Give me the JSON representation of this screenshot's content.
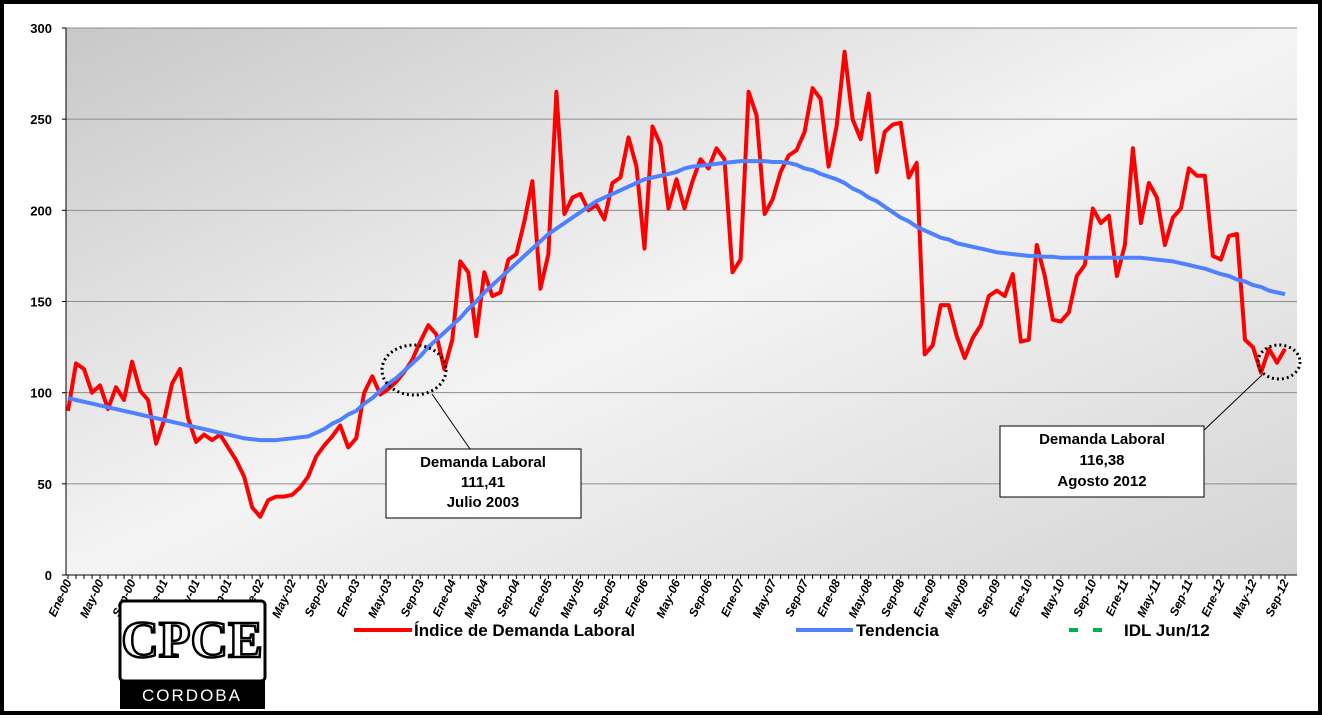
{
  "chart_data": {
    "type": "line",
    "categories": [
      "Ene-00",
      null,
      null,
      null,
      "May-00",
      null,
      null,
      null,
      "Sep-00",
      null,
      null,
      null,
      "Ene-01",
      null,
      null,
      null,
      "May-01",
      null,
      null,
      null,
      "Sep-01",
      null,
      null,
      null,
      "Ene-02",
      null,
      null,
      null,
      "May-02",
      null,
      null,
      null,
      "Sep-02",
      null,
      null,
      null,
      "Ene-03",
      null,
      null,
      null,
      "May-03",
      null,
      null,
      null,
      "Sep-03",
      null,
      null,
      null,
      "Ene-04",
      null,
      null,
      null,
      "May-04",
      null,
      null,
      null,
      "Sep-04",
      null,
      null,
      null,
      "Ene-05",
      null,
      null,
      null,
      "May-05",
      null,
      null,
      null,
      "Sep-05",
      null,
      null,
      null,
      "Ene-06",
      null,
      null,
      null,
      "May-06",
      null,
      null,
      null,
      "Sep-06",
      null,
      null,
      null,
      "Ene-07",
      null,
      null,
      null,
      "May-07",
      null,
      null,
      null,
      "Sep-07",
      null,
      null,
      null,
      "Ene-08",
      null,
      null,
      null,
      "May-08",
      null,
      null,
      null,
      "Sep-08",
      null,
      null,
      null,
      "Ene-09",
      null,
      null,
      null,
      "May-09",
      null,
      null,
      null,
      "Sep-09",
      null,
      null,
      null,
      "Ene-10",
      null,
      null,
      null,
      "May-10",
      null,
      null,
      null,
      "Sep-10",
      null,
      null,
      null,
      "Ene-11",
      null,
      null,
      null,
      "May-11",
      null,
      null,
      null,
      "Sep-11",
      null,
      null,
      null,
      "Ene-12",
      null,
      null,
      null,
      "May-12",
      null,
      null,
      null,
      "Sep-12"
    ],
    "series": [
      {
        "name": "Índice de Demanda Laboral",
        "color": "#ff0000",
        "values": [
          90,
          116,
          113,
          100,
          104,
          91,
          103,
          96,
          117,
          101,
          96,
          72,
          85,
          105,
          113,
          86,
          73,
          77,
          74,
          77,
          70,
          63,
          54,
          37,
          32,
          41,
          43,
          43,
          44,
          48,
          54,
          65,
          71,
          76,
          82,
          70,
          75,
          100,
          109,
          99,
          102,
          106,
          111.41,
          118,
          128,
          137,
          132,
          113,
          129,
          172,
          166,
          131,
          166,
          153,
          155,
          173,
          176,
          194,
          216,
          157,
          176,
          265,
          198,
          207,
          209,
          200,
          203,
          195,
          215,
          218,
          240,
          224,
          179,
          246,
          236,
          201,
          217,
          201,
          216,
          228,
          223,
          234,
          228,
          166,
          173,
          265,
          252,
          198,
          206,
          221,
          230,
          233,
          243,
          267,
          261,
          224,
          246,
          287,
          250,
          239,
          264,
          221,
          243,
          247,
          248,
          218,
          226,
          121,
          126,
          148,
          148,
          131,
          119,
          130,
          137,
          153,
          156,
          153,
          165,
          128,
          129,
          181,
          164,
          140,
          139,
          144,
          164,
          170,
          201,
          193,
          197,
          164,
          181,
          234,
          193,
          215,
          207,
          181,
          196,
          201,
          223,
          219,
          219,
          175,
          173,
          186,
          187,
          129,
          125,
          111,
          124,
          116.38,
          124
        ]
      },
      {
        "name": "Tendencia",
        "color": "#4f81ff",
        "values": [
          97,
          96,
          95,
          94,
          93,
          92,
          91,
          90,
          89,
          88,
          87,
          86,
          85,
          84,
          83,
          82,
          81,
          80,
          79,
          78,
          77,
          76,
          75,
          74.5,
          74,
          74,
          74,
          74.5,
          75,
          75.5,
          76,
          78,
          80,
          83,
          85,
          88,
          90,
          94,
          97,
          101,
          105,
          108,
          112,
          116,
          120,
          125,
          129,
          133,
          137,
          141,
          146,
          150,
          155,
          159,
          163,
          167,
          171,
          175,
          179,
          183,
          187,
          190,
          193,
          196,
          199,
          202,
          205,
          207,
          209,
          211,
          213,
          215,
          217,
          218,
          219,
          220,
          221,
          223,
          224,
          224.5,
          225,
          225.5,
          226,
          226.5,
          227,
          227,
          227,
          227,
          226.5,
          226.5,
          226,
          225,
          223,
          222,
          220,
          218.5,
          217,
          215,
          212,
          210,
          207,
          205,
          202,
          199,
          196,
          194,
          191,
          189,
          187,
          185,
          184,
          182,
          181,
          180,
          179,
          178,
          177,
          176.5,
          176,
          175.5,
          175,
          175,
          174.5,
          174.5,
          174,
          174,
          174,
          174,
          174,
          174,
          174,
          174,
          174,
          174,
          174,
          173.5,
          173,
          172.5,
          172,
          171,
          170,
          169,
          168,
          166.5,
          165,
          164,
          162,
          161,
          159,
          158,
          156,
          155,
          154
        ]
      }
    ],
    "legend_extra": [
      {
        "name": "IDL Jun/12",
        "color": "#00b050"
      }
    ],
    "ylim": [
      0,
      300
    ],
    "yticks": [
      0,
      50,
      100,
      150,
      200,
      250,
      300
    ],
    "grid": true,
    "annotations": [
      {
        "lines": [
          "Demanda Laboral",
          "111,41",
          "Julio 2003"
        ]
      },
      {
        "lines": [
          "Demanda Laboral",
          "116,38",
          "Agosto 2012"
        ]
      }
    ],
    "logo": {
      "title": "CPCE",
      "subtitle": "CORDOBA"
    }
  }
}
